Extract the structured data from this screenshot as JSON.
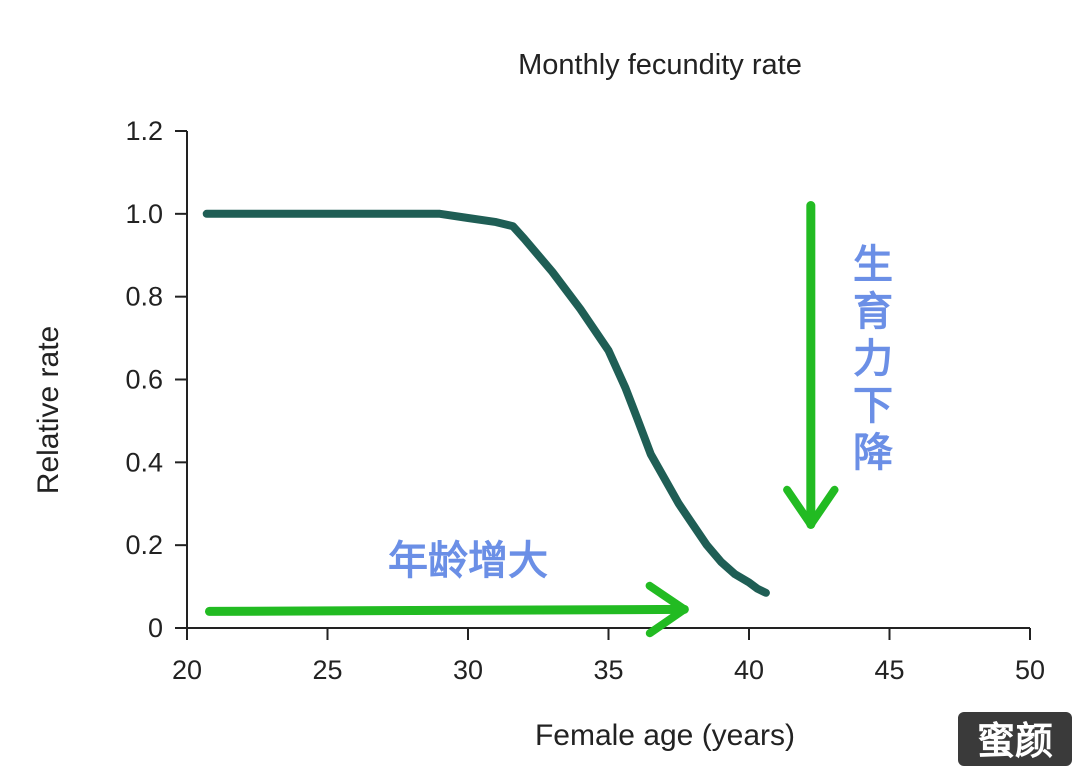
{
  "chart_data": {
    "type": "line",
    "title": "Monthly fecundity rate",
    "xlabel": "Female age (years)",
    "ylabel": "Relative rate",
    "xlim": [
      20,
      50
    ],
    "ylim": [
      0,
      1.2
    ],
    "x_ticks": [
      "20",
      "25",
      "30",
      "35",
      "40",
      "45",
      "50"
    ],
    "y_ticks": [
      "0",
      "0.2",
      "0.4",
      "0.6",
      "0.8",
      "1.0",
      "1.2"
    ],
    "grid": false,
    "series": [
      {
        "color": "#1f5e55",
        "x": [
          20.7,
          22,
          24,
          26,
          28,
          29,
          30,
          31,
          31.6,
          32,
          33,
          34,
          35,
          35.6,
          36,
          36.5,
          37,
          37.5,
          38,
          38.5,
          39,
          39.5,
          40,
          40.3,
          40.6
        ],
        "y": [
          1.0,
          1.0,
          1.0,
          1.0,
          1.0,
          1.0,
          0.99,
          0.98,
          0.97,
          0.94,
          0.86,
          0.77,
          0.67,
          0.58,
          0.51,
          0.42,
          0.36,
          0.3,
          0.25,
          0.2,
          0.16,
          0.13,
          0.11,
          0.095,
          0.085
        ]
      }
    ],
    "annotations": [
      {
        "text": "年龄增大",
        "arrow": "right",
        "arrow_from": [
          20.8,
          0.04
        ],
        "arrow_to": [
          37.7,
          0.045
        ],
        "color": "#22bb22"
      },
      {
        "text": "生育力下降",
        "arrow": "down",
        "arrow_from": [
          42.2,
          1.02
        ],
        "arrow_to": [
          42.2,
          0.25
        ],
        "color": "#22bb22"
      }
    ],
    "annotation_text_color": "#6b8fe6"
  },
  "watermark": "蜜颜"
}
